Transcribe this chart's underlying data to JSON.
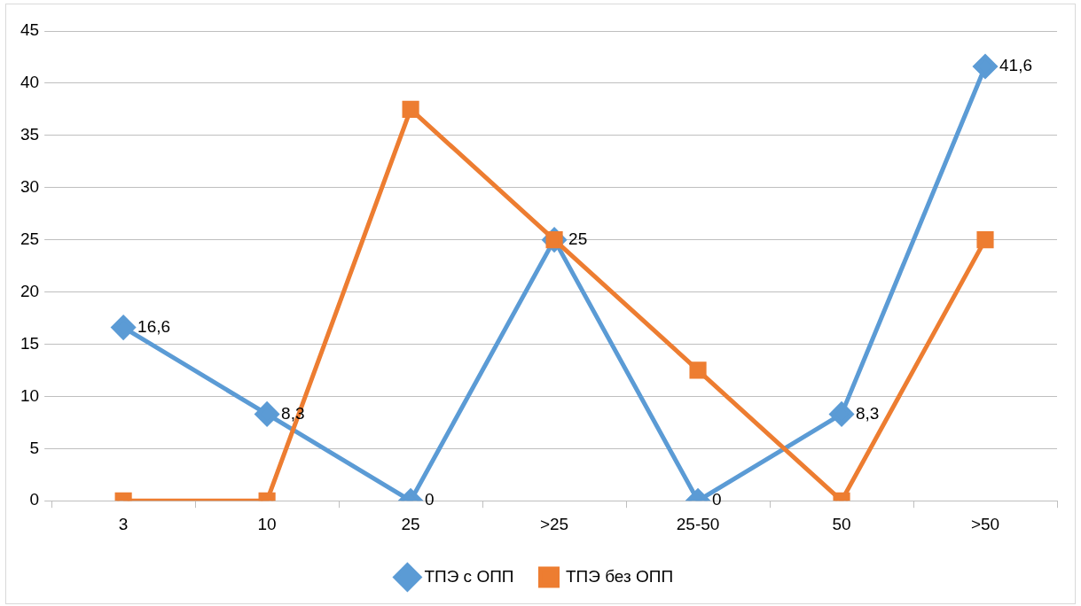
{
  "chart_data": {
    "type": "line",
    "categories": [
      "3",
      "10",
      "25",
      ">25",
      "25-50",
      "50",
      ">50"
    ],
    "series": [
      {
        "name": "ТПЭ с ОПП",
        "color": "#5b9bd5",
        "marker": "diamond",
        "values": [
          16.6,
          8.3,
          0,
          25,
          0,
          8.3,
          41.6
        ],
        "value_labels": [
          "16,6",
          "8,3",
          "0",
          "25",
          "0",
          "8,3",
          "41,6"
        ]
      },
      {
        "name": "ТПЭ без ОПП",
        "color": "#ed7d31",
        "marker": "square",
        "values": [
          0,
          0,
          37.5,
          25,
          12.5,
          0,
          25
        ]
      }
    ],
    "ylim": [
      0,
      45
    ],
    "yticks": [
      0,
      5,
      10,
      15,
      20,
      25,
      30,
      35,
      40,
      45
    ],
    "grid": "y",
    "legend": "bottom",
    "line_style": "solid"
  }
}
